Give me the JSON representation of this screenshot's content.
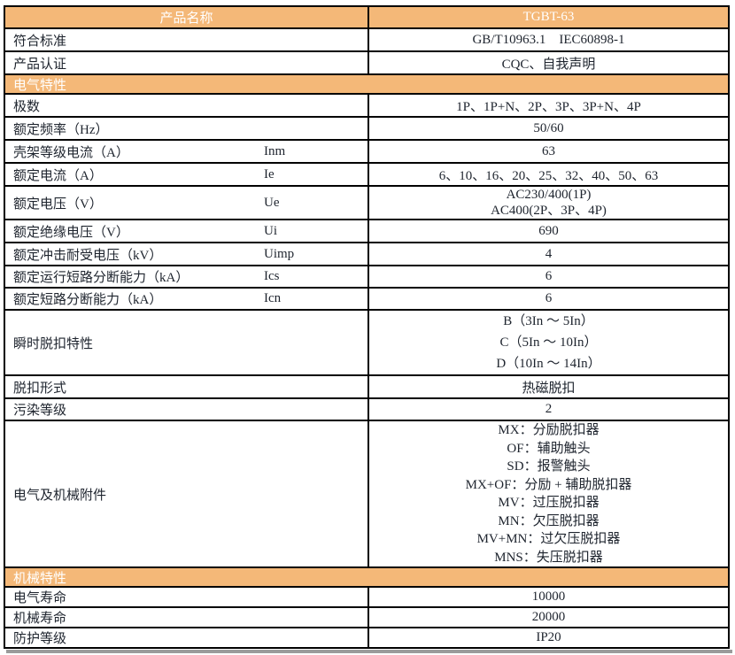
{
  "colors": {
    "accent_orange": "#F4B878",
    "header_text": "#FFFFFF",
    "body_text": "#1E242E",
    "border": "#000000",
    "shadow_gray": "#9B9B9B"
  },
  "table": {
    "product_header": {
      "label": "产品名称",
      "value": "TGBT-63"
    },
    "rows": [
      {
        "kind": "data",
        "label": "符合标准",
        "value": "GB/T10963.1    IEC60898-1"
      },
      {
        "kind": "data",
        "label": "产品认证",
        "value": "CQC、自我声明"
      },
      {
        "kind": "section",
        "label": "电气特性"
      },
      {
        "kind": "data",
        "label": "极数",
        "value": "1P、1P+N、2P、3P、3P+N、4P"
      },
      {
        "kind": "data",
        "label": "额定频率（Hz）",
        "value": "50/60"
      },
      {
        "kind": "data",
        "label": "壳架等级电流（A）",
        "symbol": "Inm",
        "value": "63"
      },
      {
        "kind": "data",
        "label": "额定电流（A）",
        "symbol": "Ie",
        "value": "6、10、16、20、25、32、40、50、63"
      },
      {
        "kind": "data",
        "label": "额定电压（V）",
        "symbol": "Ue",
        "value": "AC230/400(1P)\nAC400(2P、3P、4P)"
      },
      {
        "kind": "data",
        "label": "额定绝缘电压（V）",
        "symbol": "Ui",
        "value": "690"
      },
      {
        "kind": "data",
        "label": "额定冲击耐受电压（kV）",
        "symbol": "Uimp",
        "value": "4"
      },
      {
        "kind": "data",
        "label": "额定运行短路分断能力（kA）",
        "symbol": "Ics",
        "value": "6"
      },
      {
        "kind": "data",
        "label": "额定短路分断能力（kA）",
        "symbol": "Icn",
        "value": "6"
      },
      {
        "kind": "data",
        "label": "瞬时脱扣特性",
        "value": "B（3In ～ 5In）\nC（5In ～ 10In）\nD（10In ～ 14In）"
      },
      {
        "kind": "data",
        "label": "脱扣形式",
        "value": "热磁脱扣"
      },
      {
        "kind": "data",
        "label": "污染等级",
        "value": "2"
      },
      {
        "kind": "data",
        "label": "电气及机械附件",
        "value": "MX：分励脱扣器\nOF：辅助触头\nSD：报警触头\nMX+OF：分励 + 辅助脱扣器\nMV：过压脱扣器\nMN：欠压脱扣器\nMV+MN：过欠压脱扣器\nMNS：失压脱扣器"
      },
      {
        "kind": "section",
        "label": "机械特性"
      },
      {
        "kind": "data",
        "label": "电气寿命",
        "value": "10000"
      },
      {
        "kind": "data",
        "label": "机械寿命",
        "value": "20000"
      },
      {
        "kind": "data",
        "label": "防护等级",
        "value": "IP20"
      }
    ]
  }
}
